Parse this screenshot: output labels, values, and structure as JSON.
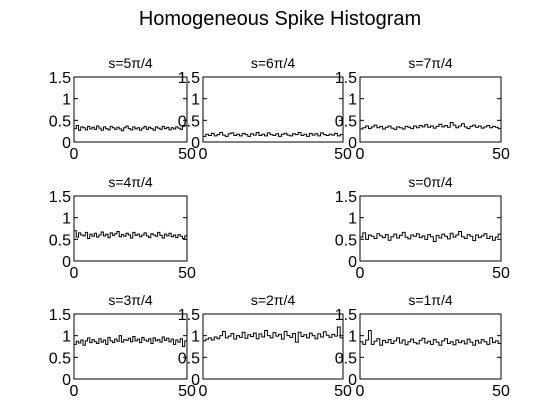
{
  "figure": {
    "title": "Homogeneous Spike Histogram"
  },
  "chart_data": [
    {
      "type": "line",
      "step": true,
      "title": "s=5π/4",
      "xlim": [
        0,
        50
      ],
      "ylim": [
        0,
        1.5
      ],
      "xticks": [
        0,
        50
      ],
      "yticks": [
        0,
        0.5,
        1,
        1.5
      ],
      "xtick_labels": [
        "0",
        "50"
      ],
      "ytick_labels": [
        "0",
        "0.5",
        "1",
        "1.5"
      ],
      "values": [
        0.31,
        0.38,
        0.27,
        0.35,
        0.33,
        0.28,
        0.36,
        0.3,
        0.34,
        0.29,
        0.37,
        0.32,
        0.27,
        0.35,
        0.31,
        0.28,
        0.36,
        0.33,
        0.29,
        0.34,
        0.3,
        0.26,
        0.33,
        0.37,
        0.31,
        0.28,
        0.35,
        0.3,
        0.33,
        0.27,
        0.32,
        0.36,
        0.29,
        0.34,
        0.31,
        0.27,
        0.35,
        0.32,
        0.29,
        0.36,
        0.31,
        0.34,
        0.28,
        0.33,
        0.3,
        0.35,
        0.32,
        0.29,
        0.36,
        0.38
      ]
    },
    {
      "type": "line",
      "step": true,
      "title": "s=6π/4",
      "xlim": [
        0,
        50
      ],
      "ylim": [
        0,
        1.5
      ],
      "xticks": [
        0,
        50
      ],
      "yticks": [
        0,
        0.5,
        1,
        1.5
      ],
      "xtick_labels": [
        "0",
        "50"
      ],
      "ytick_labels": [
        "0",
        "0.5",
        "1",
        "1.5"
      ],
      "values": [
        0.13,
        0.18,
        0.15,
        0.2,
        0.14,
        0.17,
        0.22,
        0.16,
        0.13,
        0.19,
        0.21,
        0.15,
        0.18,
        0.14,
        0.2,
        0.17,
        0.13,
        0.19,
        0.16,
        0.22,
        0.15,
        0.18,
        0.14,
        0.21,
        0.17,
        0.15,
        0.19,
        0.13,
        0.18,
        0.2,
        0.16,
        0.14,
        0.19,
        0.17,
        0.22,
        0.15,
        0.18,
        0.13,
        0.2,
        0.16,
        0.19,
        0.14,
        0.21,
        0.17,
        0.15,
        0.18,
        0.16,
        0.2,
        0.14,
        0.17
      ]
    },
    {
      "type": "line",
      "step": true,
      "title": "s=7π/4",
      "xlim": [
        0,
        50
      ],
      "ylim": [
        0,
        1.5
      ],
      "xticks": [
        0,
        50
      ],
      "yticks": [
        0,
        0.5,
        1,
        1.5
      ],
      "xtick_labels": [
        "0",
        "50"
      ],
      "ytick_labels": [
        "0",
        "0.5",
        "1",
        "1.5"
      ],
      "values": [
        0.3,
        0.33,
        0.37,
        0.31,
        0.35,
        0.39,
        0.33,
        0.36,
        0.3,
        0.34,
        0.37,
        0.32,
        0.29,
        0.35,
        0.33,
        0.3,
        0.36,
        0.34,
        0.31,
        0.37,
        0.33,
        0.38,
        0.35,
        0.4,
        0.34,
        0.37,
        0.32,
        0.36,
        0.41,
        0.35,
        0.38,
        0.34,
        0.45,
        0.39,
        0.33,
        0.37,
        0.42,
        0.35,
        0.31,
        0.36,
        0.39,
        0.34,
        0.37,
        0.32,
        0.35,
        0.38,
        0.33,
        0.36,
        0.34,
        0.31
      ]
    },
    {
      "type": "line",
      "step": true,
      "title": "s=4π/4",
      "xlim": [
        0,
        50
      ],
      "ylim": [
        0,
        1.5
      ],
      "xticks": [
        0,
        50
      ],
      "yticks": [
        0,
        0.5,
        1,
        1.5
      ],
      "xtick_labels": [
        "0",
        "50"
      ],
      "ytick_labels": [
        "0",
        "0.5",
        "1",
        "1.5"
      ],
      "values": [
        0.7,
        0.55,
        0.65,
        0.6,
        0.58,
        0.66,
        0.52,
        0.62,
        0.57,
        0.64,
        0.55,
        0.6,
        0.67,
        0.58,
        0.62,
        0.54,
        0.65,
        0.59,
        0.63,
        0.68,
        0.56,
        0.61,
        0.57,
        0.64,
        0.6,
        0.53,
        0.66,
        0.59,
        0.62,
        0.56,
        0.6,
        0.65,
        0.58,
        0.54,
        0.63,
        0.6,
        0.57,
        0.66,
        0.59,
        0.53,
        0.62,
        0.58,
        0.64,
        0.56,
        0.6,
        0.54,
        0.61,
        0.57,
        0.52,
        0.58
      ]
    },
    {
      "type": "line",
      "step": true,
      "title": "s=0π/4",
      "xlim": [
        0,
        50
      ],
      "ylim": [
        0,
        1.5
      ],
      "xticks": [
        0,
        50
      ],
      "yticks": [
        0,
        0.5,
        1,
        1.5
      ],
      "xtick_labels": [
        "0",
        "50"
      ],
      "ytick_labels": [
        "0",
        "0.5",
        "1",
        "1.5"
      ],
      "values": [
        0.55,
        0.65,
        0.5,
        0.6,
        0.57,
        0.52,
        0.63,
        0.58,
        0.54,
        0.61,
        0.48,
        0.56,
        0.62,
        0.53,
        0.59,
        0.66,
        0.55,
        0.51,
        0.6,
        0.57,
        0.63,
        0.54,
        0.58,
        0.5,
        0.61,
        0.56,
        0.45,
        0.59,
        0.53,
        0.62,
        0.57,
        0.51,
        0.64,
        0.55,
        0.6,
        0.68,
        0.56,
        0.52,
        0.61,
        0.57,
        0.47,
        0.6,
        0.54,
        0.58,
        0.63,
        0.52,
        0.57,
        0.48,
        0.55,
        0.62
      ]
    },
    {
      "type": "line",
      "step": true,
      "title": "s=3π/4",
      "xlim": [
        0,
        50
      ],
      "ylim": [
        0,
        1.5
      ],
      "xticks": [
        0,
        50
      ],
      "yticks": [
        0,
        0.5,
        1,
        1.5
      ],
      "xtick_labels": [
        "0",
        "50"
      ],
      "ytick_labels": [
        "0",
        "0.5",
        "1",
        "1.5"
      ],
      "values": [
        0.8,
        0.87,
        0.83,
        0.9,
        0.78,
        0.88,
        0.95,
        0.84,
        0.91,
        0.86,
        0.82,
        0.93,
        0.85,
        0.9,
        0.8,
        0.96,
        0.88,
        0.84,
        0.92,
        0.87,
        1.0,
        0.85,
        0.91,
        0.89,
        0.94,
        0.86,
        0.98,
        0.88,
        0.92,
        0.84,
        0.96,
        0.9,
        0.87,
        0.93,
        0.82,
        0.95,
        0.88,
        0.91,
        0.85,
        0.97,
        0.89,
        0.94,
        0.86,
        0.92,
        0.8,
        0.9,
        0.85,
        0.93,
        0.75,
        0.88
      ]
    },
    {
      "type": "line",
      "step": true,
      "title": "s=2π/4",
      "xlim": [
        0,
        50
      ],
      "ylim": [
        0,
        1.5
      ],
      "xticks": [
        0,
        50
      ],
      "yticks": [
        0,
        0.5,
        1,
        1.5
      ],
      "xtick_labels": [
        "0",
        "50"
      ],
      "ytick_labels": [
        "0",
        "0.5",
        "1",
        "1.5"
      ],
      "values": [
        0.88,
        0.92,
        0.95,
        0.9,
        0.97,
        0.93,
        1.0,
        1.1,
        0.95,
        0.99,
        1.05,
        0.92,
        1.0,
        0.96,
        1.08,
        0.94,
        1.02,
        0.98,
        1.06,
        0.93,
        1.04,
        0.97,
        1.12,
        1.0,
        0.95,
        1.07,
        0.99,
        1.03,
        0.92,
        1.1,
        1.0,
        0.96,
        1.05,
        0.85,
        1.08,
        0.98,
        1.02,
        0.95,
        1.06,
        1.0,
        0.93,
        1.04,
        0.97,
        1.09,
        1.01,
        0.96,
        1.03,
        0.99,
        1.2,
        0.95
      ]
    },
    {
      "type": "line",
      "step": true,
      "title": "s=1π/4",
      "xlim": [
        0,
        50
      ],
      "ylim": [
        0,
        1.5
      ],
      "xticks": [
        0,
        50
      ],
      "yticks": [
        0,
        0.5,
        1,
        1.5
      ],
      "xtick_labels": [
        "0",
        "50"
      ],
      "ytick_labels": [
        "0",
        "0.5",
        "1",
        "1.5"
      ],
      "values": [
        0.86,
        0.8,
        0.9,
        1.12,
        0.8,
        0.87,
        0.93,
        0.78,
        0.89,
        0.84,
        0.91,
        0.82,
        0.88,
        0.95,
        0.83,
        0.9,
        0.79,
        0.86,
        0.92,
        0.84,
        0.81,
        0.89,
        0.94,
        0.83,
        0.87,
        0.8,
        0.91,
        0.85,
        0.78,
        0.88,
        0.93,
        0.82,
        0.86,
        0.79,
        0.9,
        0.84,
        0.88,
        0.81,
        0.92,
        0.85,
        0.78,
        0.89,
        0.83,
        0.91,
        0.86,
        0.8,
        0.95,
        0.84,
        0.88,
        0.82
      ]
    }
  ]
}
